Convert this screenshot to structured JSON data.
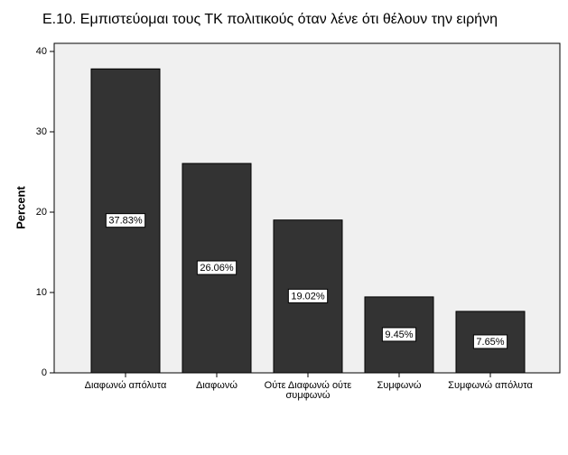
{
  "chart_data": {
    "type": "bar",
    "title": "Ε.10. Εμπιστεύομαι τους ΤΚ πολιτικούς όταν λένε ότι θέλουν την ειρήνη",
    "y_label": "Percent",
    "categories": [
      "Διαφωνώ απόλυτα",
      "Διαφωνώ",
      "Ούτε Διαφωνώ ούτε συμφωνώ",
      "Συμφωνώ",
      "Συμφωνώ απόλυτα"
    ],
    "values": [
      37.83,
      26.06,
      19.02,
      9.45,
      7.65
    ],
    "value_labels": [
      "37.83%",
      "26.06%",
      "19.02%",
      "9.45%",
      "7.65%"
    ],
    "color": "#333333",
    "ylim": [
      0,
      40
    ],
    "yticks": [
      0,
      10,
      20,
      30,
      40
    ]
  }
}
